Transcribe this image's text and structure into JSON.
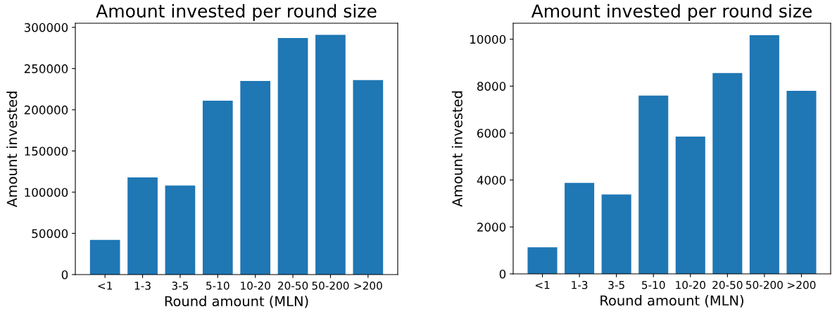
{
  "chart_data": [
    {
      "type": "bar",
      "title": "Amount invested per round size",
      "xlabel": "Round amount (MLN)",
      "ylabel": "Amount invested",
      "categories": [
        "<1",
        "1-3",
        "3-5",
        "5-10",
        "10-20",
        "20-50",
        "50-200",
        ">200"
      ],
      "values": [
        42000,
        118000,
        108000,
        211000,
        235000,
        287000,
        291000,
        236000
      ],
      "color": "#1f77b4",
      "ylim": [
        0,
        305000
      ],
      "yticks": [
        0,
        50000,
        100000,
        150000,
        200000,
        250000,
        300000
      ]
    },
    {
      "type": "bar",
      "title": "Amount invested per round size",
      "xlabel": "Round amount (MLN)",
      "ylabel": "Amount invested",
      "categories": [
        "<1",
        "1-3",
        "3-5",
        "5-10",
        "10-20",
        "20-50",
        "50-200",
        ">200"
      ],
      "values": [
        1130,
        3880,
        3380,
        7600,
        5850,
        8560,
        10170,
        7800
      ],
      "color": "#1f77b4",
      "ylim": [
        0,
        10680
      ],
      "yticks": [
        0,
        2000,
        4000,
        6000,
        8000,
        10000
      ]
    }
  ]
}
